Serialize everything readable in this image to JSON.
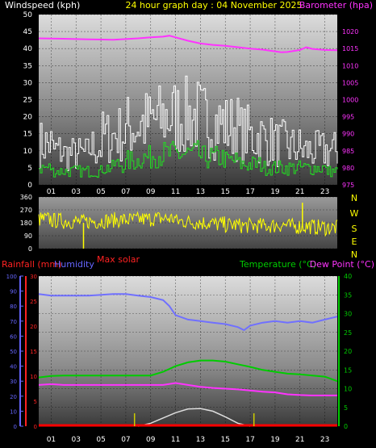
{
  "header": {
    "left_title": "Windspeed (kph)",
    "center_title": "24 hour graph day : 04 November 2025",
    "right_title": "Barometer (hpa)"
  },
  "colors": {
    "background": "#000000",
    "barometer": "#ff33ff",
    "windspeed_white": "#ffffff",
    "windspeed_gray": "#bfbfbf",
    "gust_green": "#22dd22",
    "direction": "#ffff00",
    "rainfall": "#ff2222",
    "humidity": "#6666ff",
    "temperature": "#00cc00",
    "dew_point": "#ff33ff",
    "solar": "#cccccc",
    "uv_ticks": "#cccc00"
  },
  "x_ticks": [
    "01",
    "03",
    "05",
    "07",
    "09",
    "11",
    "13",
    "15",
    "17",
    "19",
    "21",
    "23"
  ],
  "chart_data": [
    {
      "type": "line",
      "id": "wind_baro",
      "ylabel_left": "Windspeed (kph)",
      "ylabel_right": "Barometer (hpa)",
      "ylim_left": [
        0,
        50
      ],
      "yticks_left": [
        0,
        5,
        10,
        15,
        20,
        25,
        30,
        35,
        40,
        45,
        50
      ],
      "ylim_right": [
        975,
        1025
      ],
      "yticks_right": [
        975,
        980,
        985,
        990,
        995,
        1000,
        1005,
        1010,
        1015,
        1020
      ],
      "barometer": {
        "x_hours": [
          0,
          2,
          4,
          6,
          8,
          9,
          10,
          10.5,
          11,
          12,
          13,
          14,
          15,
          16,
          17,
          18,
          19,
          19.5,
          20,
          21,
          21.5,
          22,
          23,
          24
        ],
        "values": [
          1018,
          1017.9,
          1017.7,
          1017.6,
          1018,
          1018.3,
          1018.5,
          1018.8,
          1018.3,
          1017.3,
          1016.5,
          1016.1,
          1015.8,
          1015.4,
          1015,
          1014.7,
          1014.2,
          1013.9,
          1014,
          1014.6,
          1015.4,
          1014.9,
          1014.6,
          1014.5
        ]
      },
      "windspeed_hourly_avg": [
        12,
        10,
        9,
        9,
        11,
        14,
        15,
        17,
        18,
        19,
        20,
        20,
        20,
        19,
        18,
        17,
        15,
        14,
        13,
        12,
        11,
        10,
        10,
        10
      ],
      "gust_hourly_avg": [
        5,
        4,
        4,
        4,
        4,
        5,
        6,
        7,
        8,
        9,
        9,
        9,
        9,
        8,
        8,
        7,
        6,
        6,
        5,
        5,
        5,
        5,
        5,
        4
      ]
    },
    {
      "type": "scatter",
      "id": "wind_direction",
      "ylim": [
        0,
        360
      ],
      "yticks": [
        0,
        90,
        180,
        270,
        360
      ],
      "compass": [
        "N",
        "W",
        "S",
        "E",
        "N"
      ],
      "direction_hourly_avg": [
        205,
        195,
        190,
        185,
        190,
        195,
        200,
        200,
        205,
        210,
        210,
        190,
        185,
        180,
        170,
        165,
        160,
        160,
        160,
        165,
        155,
        155,
        150,
        145
      ]
    },
    {
      "type": "line",
      "id": "rain_temp",
      "legend": [
        "Rainfall (mm)",
        "Humidity",
        "Max solar",
        "Temperature (°C)",
        "Dew Point (°C)"
      ],
      "ylim_rain": [
        0,
        30
      ],
      "yticks_rain": [
        0,
        5,
        10,
        15,
        20,
        25,
        30
      ],
      "ylim_humidity": [
        0,
        100
      ],
      "yticks_humidity": [
        0,
        10,
        20,
        30,
        40,
        50,
        60,
        70,
        80,
        90,
        100
      ],
      "ylim_temp": [
        0,
        40
      ],
      "yticks_temp": [
        0,
        5,
        10,
        15,
        20,
        25,
        30,
        35,
        40
      ],
      "humidity": {
        "x_hours": [
          0,
          1,
          2,
          4,
          6,
          7,
          8,
          9,
          10,
          10.5,
          11,
          12,
          13,
          14,
          15,
          16,
          16.5,
          17,
          18,
          19,
          20,
          21,
          22,
          23,
          24
        ],
        "values": [
          88,
          87,
          87,
          87,
          88,
          88,
          87,
          86,
          84,
          80,
          74,
          71,
          70,
          69,
          68,
          66,
          64,
          67,
          69,
          70,
          69,
          70,
          69,
          71,
          73
        ]
      },
      "temperature": {
        "x_hours": [
          0,
          1,
          2,
          4,
          6,
          8,
          9,
          10,
          11,
          12,
          13,
          14,
          15,
          16,
          17,
          18,
          19,
          20,
          21,
          22,
          23,
          24
        ],
        "values": [
          13,
          13.4,
          13.5,
          13.5,
          13.5,
          13.5,
          13.5,
          14.5,
          16,
          17,
          17.5,
          17.5,
          17.2,
          16.5,
          15.8,
          15,
          14.5,
          14,
          13.8,
          13.5,
          13.2,
          12
        ]
      },
      "dew_point": {
        "x_hours": [
          0,
          1,
          2,
          4,
          6,
          8,
          9,
          10,
          11,
          12,
          13,
          14,
          15,
          16,
          17,
          18,
          19,
          20,
          21,
          22,
          23,
          24
        ],
        "values": [
          11,
          11.2,
          11,
          11,
          11,
          11,
          11,
          11,
          11.5,
          11,
          10.5,
          10.2,
          10,
          9.8,
          9.5,
          9.2,
          9,
          8.5,
          8.3,
          8.2,
          8.2,
          8.2
        ]
      },
      "rainfall": {
        "x_hours": [
          0,
          24
        ],
        "values": [
          0,
          0
        ]
      },
      "solar": {
        "x_hours": [
          8,
          9,
          10,
          11,
          12,
          13,
          14,
          15,
          16,
          17
        ],
        "values": [
          0,
          0.8,
          2.2,
          3.6,
          4.6,
          4.7,
          4,
          2.5,
          0.8,
          0
        ]
      },
      "uv_ticks_x_hours": [
        7.7,
        17.3
      ]
    }
  ]
}
